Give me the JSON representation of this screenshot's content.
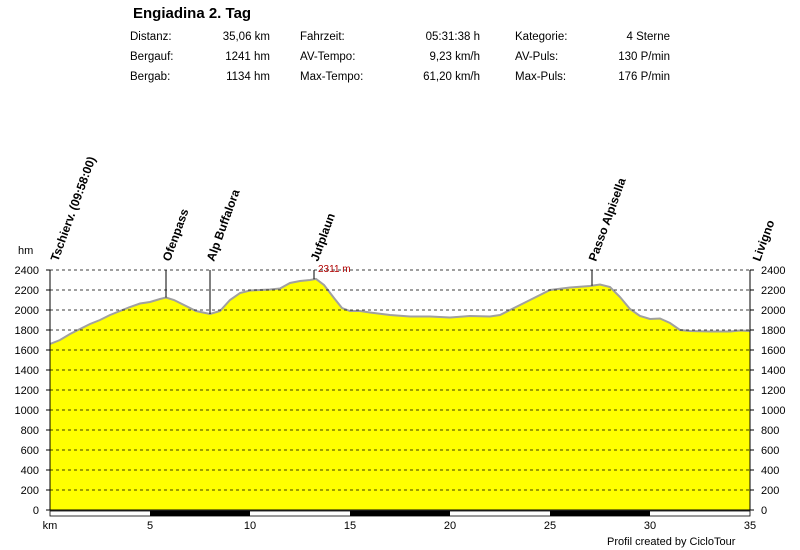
{
  "title": "Engiadina 2. Tag",
  "stats": [
    {
      "label": "Distanz:",
      "value": "35,06 km"
    },
    {
      "label": "Bergauf:",
      "value": "1241 hm"
    },
    {
      "label": "Bergab:",
      "value": "1134 hm"
    },
    {
      "label": "Fahrzeit:",
      "value": "05:31:38 h"
    },
    {
      "label": "AV-Tempo:",
      "value": "9,23 km/h"
    },
    {
      "label": "Max-Tempo:",
      "value": "61,20 km/h"
    },
    {
      "label": "Kategorie:",
      "value": "4 Sterne"
    },
    {
      "label": "AV-Puls:",
      "value": "130 P/min"
    },
    {
      "label": "Max-Puls:",
      "value": "176 P/min"
    }
  ],
  "footer": "Profil created by CicloTour",
  "colors": {
    "fill": "#ffff00",
    "outline": "#a0a0a0",
    "max_label": "#b00000",
    "grid": "#000000"
  },
  "chart_data": {
    "type": "area",
    "xlabel": "km",
    "ylabel": "hm",
    "xlim": [
      0,
      35
    ],
    "ylim": [
      0,
      2400
    ],
    "x_ticks": [
      5,
      10,
      15,
      20,
      25,
      30,
      35
    ],
    "y_ticks": [
      0,
      200,
      400,
      600,
      800,
      1000,
      1200,
      1400,
      1600,
      1800,
      2000,
      2200,
      2400
    ],
    "grid": true,
    "x": [
      0,
      0.5,
      1,
      1.5,
      2,
      2.5,
      3,
      3.5,
      4,
      4.5,
      5,
      5.5,
      5.8,
      6.2,
      6.8,
      7.3,
      8,
      8.5,
      9,
      9.5,
      10,
      10.5,
      11,
      11.5,
      12,
      12.5,
      13,
      13.3,
      13.7,
      14.2,
      14.6,
      15,
      15.5,
      16,
      17,
      18,
      19,
      20,
      21,
      22,
      22.5,
      23,
      24,
      25,
      26,
      27,
      27.5,
      28,
      28.5,
      29,
      29.5,
      30,
      30.5,
      31,
      31.5,
      32,
      33,
      34,
      34.5,
      35
    ],
    "y": [
      1660,
      1700,
      1760,
      1810,
      1860,
      1900,
      1950,
      1990,
      2030,
      2065,
      2080,
      2110,
      2125,
      2100,
      2040,
      1990,
      1960,
      1990,
      2100,
      2170,
      2195,
      2200,
      2205,
      2215,
      2270,
      2290,
      2300,
      2311,
      2250,
      2120,
      2020,
      1990,
      1990,
      1975,
      1950,
      1935,
      1935,
      1925,
      1940,
      1935,
      1950,
      2000,
      2100,
      2200,
      2225,
      2240,
      2255,
      2230,
      2130,
      2010,
      1940,
      1910,
      1915,
      1870,
      1800,
      1790,
      1785,
      1785,
      1795,
      1790
    ],
    "waypoints": [
      {
        "km": 0,
        "label": "Tschierv. (09:58:00)"
      },
      {
        "km": 5.8,
        "label": "Ofenpass"
      },
      {
        "km": 8,
        "label": "Alp Buffalora"
      },
      {
        "km": 13.2,
        "label": "Jufplaun"
      },
      {
        "km": 27.1,
        "label": "Passo Alpisella"
      },
      {
        "km": 35,
        "label": "Livigno"
      }
    ],
    "max_annotation": {
      "km": 13.3,
      "elevation": 2311,
      "label": "2311 m"
    },
    "scale_bar_segments": [
      [
        5,
        10
      ],
      [
        15,
        20
      ],
      [
        25,
        30
      ]
    ]
  }
}
